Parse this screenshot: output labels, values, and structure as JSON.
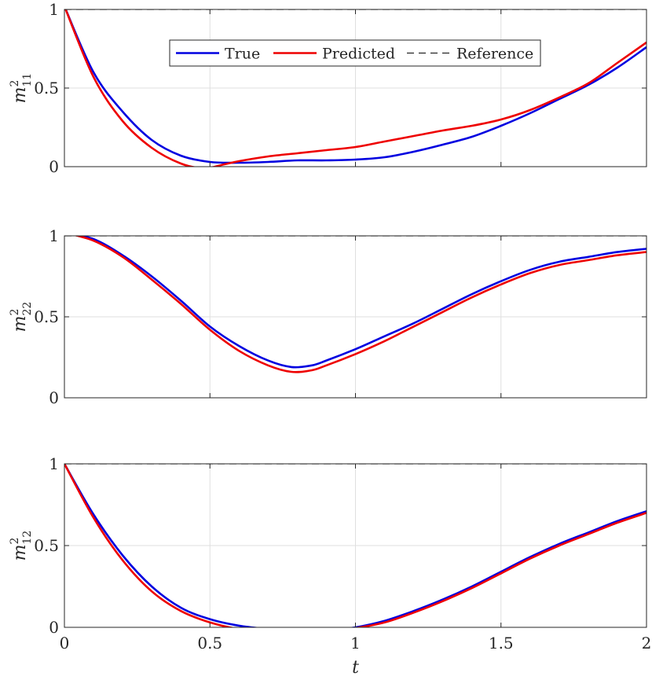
{
  "chart_data": [
    {
      "type": "line",
      "ylabel": {
        "base": "m",
        "sup": "2",
        "sub": "11"
      },
      "xlabel": "",
      "xlim": [
        0,
        2
      ],
      "ylim": [
        0,
        1
      ],
      "xticks": [
        "0",
        "0.5",
        "1",
        "1.5",
        "2"
      ],
      "yticks": [
        "0",
        "0.5",
        "1"
      ],
      "grid": true,
      "legend": {
        "placement": "top-center",
        "entries": [
          "True",
          "Predicted",
          "Reference"
        ]
      },
      "series": [
        {
          "name": "True",
          "color": "#0000e0",
          "points": [
            [
              0,
              1.02
            ],
            [
              0.1,
              0.6
            ],
            [
              0.2,
              0.35
            ],
            [
              0.3,
              0.17
            ],
            [
              0.4,
              0.07
            ],
            [
              0.5,
              0.03
            ],
            [
              0.6,
              0.025
            ],
            [
              0.7,
              0.03
            ],
            [
              0.8,
              0.04
            ],
            [
              0.9,
              0.04
            ],
            [
              1.0,
              0.045
            ],
            [
              1.1,
              0.06
            ],
            [
              1.2,
              0.095
            ],
            [
              1.3,
              0.14
            ],
            [
              1.4,
              0.19
            ],
            [
              1.5,
              0.26
            ],
            [
              1.6,
              0.34
            ],
            [
              1.7,
              0.43
            ],
            [
              1.8,
              0.52
            ],
            [
              1.9,
              0.63
            ],
            [
              2.0,
              0.76
            ]
          ]
        },
        {
          "name": "Predicted",
          "color": "#ee0000",
          "points": [
            [
              0,
              1.02
            ],
            [
              0.1,
              0.57
            ],
            [
              0.2,
              0.29
            ],
            [
              0.3,
              0.12
            ],
            [
              0.4,
              0.02
            ],
            [
              0.48,
              -0.01
            ],
            [
              0.55,
              0.015
            ],
            [
              0.6,
              0.035
            ],
            [
              0.7,
              0.065
            ],
            [
              0.8,
              0.085
            ],
            [
              0.9,
              0.105
            ],
            [
              1.0,
              0.125
            ],
            [
              1.1,
              0.16
            ],
            [
              1.2,
              0.195
            ],
            [
              1.3,
              0.23
            ],
            [
              1.4,
              0.26
            ],
            [
              1.5,
              0.3
            ],
            [
              1.6,
              0.36
            ],
            [
              1.7,
              0.44
            ],
            [
              1.8,
              0.53
            ],
            [
              1.9,
              0.66
            ],
            [
              2.0,
              0.79
            ]
          ]
        },
        {
          "name": "Reference",
          "color": "#262626",
          "dashed": true,
          "points": [
            [
              0,
              1
            ],
            [
              2,
              1
            ]
          ]
        }
      ]
    },
    {
      "type": "line",
      "ylabel": {
        "base": "m",
        "sup": "2",
        "sub": "22"
      },
      "xlabel": "",
      "xlim": [
        0,
        2
      ],
      "ylim": [
        0,
        1
      ],
      "xticks": [
        "0",
        "0.5",
        "1",
        "1.5",
        "2"
      ],
      "yticks": [
        "0",
        "0.5",
        "1"
      ],
      "grid": true,
      "series": [
        {
          "name": "True",
          "color": "#0000e0",
          "points": [
            [
              0,
              1.02
            ],
            [
              0.1,
              0.98
            ],
            [
              0.2,
              0.88
            ],
            [
              0.3,
              0.75
            ],
            [
              0.4,
              0.6
            ],
            [
              0.5,
              0.44
            ],
            [
              0.6,
              0.32
            ],
            [
              0.7,
              0.23
            ],
            [
              0.78,
              0.19
            ],
            [
              0.85,
              0.2
            ],
            [
              0.9,
              0.23
            ],
            [
              1.0,
              0.3
            ],
            [
              1.1,
              0.38
            ],
            [
              1.2,
              0.46
            ],
            [
              1.3,
              0.55
            ],
            [
              1.4,
              0.64
            ],
            [
              1.5,
              0.72
            ],
            [
              1.6,
              0.79
            ],
            [
              1.7,
              0.84
            ],
            [
              1.8,
              0.87
            ],
            [
              1.9,
              0.9
            ],
            [
              2.0,
              0.92
            ]
          ]
        },
        {
          "name": "Predicted",
          "color": "#ee0000",
          "points": [
            [
              0,
              1.02
            ],
            [
              0.1,
              0.97
            ],
            [
              0.2,
              0.87
            ],
            [
              0.3,
              0.73
            ],
            [
              0.4,
              0.58
            ],
            [
              0.5,
              0.42
            ],
            [
              0.6,
              0.29
            ],
            [
              0.7,
              0.2
            ],
            [
              0.78,
              0.16
            ],
            [
              0.85,
              0.17
            ],
            [
              0.9,
              0.2
            ],
            [
              1.0,
              0.27
            ],
            [
              1.1,
              0.35
            ],
            [
              1.2,
              0.44
            ],
            [
              1.3,
              0.53
            ],
            [
              1.4,
              0.62
            ],
            [
              1.5,
              0.7
            ],
            [
              1.6,
              0.77
            ],
            [
              1.7,
              0.82
            ],
            [
              1.8,
              0.85
            ],
            [
              1.9,
              0.88
            ],
            [
              2.0,
              0.9
            ]
          ]
        },
        {
          "name": "Reference",
          "color": "#262626",
          "dashed": true,
          "points": [
            [
              0,
              1
            ],
            [
              2,
              1
            ]
          ]
        }
      ]
    },
    {
      "type": "line",
      "ylabel": {
        "base": "m",
        "sup": "2",
        "sub": "12"
      },
      "xlabel": "t",
      "xlim": [
        0,
        2
      ],
      "ylim": [
        0,
        1
      ],
      "xticks": [
        "0",
        "0.5",
        "1",
        "1.5",
        "2"
      ],
      "yticks": [
        "0",
        "0.5",
        "1"
      ],
      "grid": true,
      "series": [
        {
          "name": "True",
          "color": "#0000e0",
          "points": [
            [
              0,
              1.0
            ],
            [
              0.1,
              0.69
            ],
            [
              0.2,
              0.44
            ],
            [
              0.3,
              0.25
            ],
            [
              0.4,
              0.12
            ],
            [
              0.5,
              0.05
            ],
            [
              0.6,
              0.01
            ],
            [
              0.7,
              -0.01
            ],
            [
              0.8,
              -0.02
            ],
            [
              0.9,
              -0.02
            ],
            [
              1.0,
              0.0
            ],
            [
              1.1,
              0.04
            ],
            [
              1.2,
              0.1
            ],
            [
              1.3,
              0.17
            ],
            [
              1.4,
              0.25
            ],
            [
              1.5,
              0.34
            ],
            [
              1.6,
              0.43
            ],
            [
              1.7,
              0.51
            ],
            [
              1.8,
              0.58
            ],
            [
              1.9,
              0.65
            ],
            [
              2.0,
              0.71
            ]
          ]
        },
        {
          "name": "Predicted",
          "color": "#ee0000",
          "points": [
            [
              0,
              1.0
            ],
            [
              0.1,
              0.67
            ],
            [
              0.2,
              0.41
            ],
            [
              0.3,
              0.22
            ],
            [
              0.4,
              0.1
            ],
            [
              0.5,
              0.03
            ],
            [
              0.6,
              -0.01
            ],
            [
              0.7,
              -0.02
            ],
            [
              0.8,
              -0.03
            ],
            [
              0.9,
              -0.025
            ],
            [
              1.0,
              -0.005
            ],
            [
              1.1,
              0.03
            ],
            [
              1.2,
              0.09
            ],
            [
              1.3,
              0.16
            ],
            [
              1.4,
              0.24
            ],
            [
              1.5,
              0.33
            ],
            [
              1.6,
              0.42
            ],
            [
              1.7,
              0.5
            ],
            [
              1.8,
              0.57
            ],
            [
              1.9,
              0.64
            ],
            [
              2.0,
              0.7
            ]
          ]
        },
        {
          "name": "Reference",
          "color": "#262626",
          "dashed": true,
          "points": [
            [
              0,
              1
            ],
            [
              2,
              1
            ]
          ]
        }
      ]
    }
  ]
}
